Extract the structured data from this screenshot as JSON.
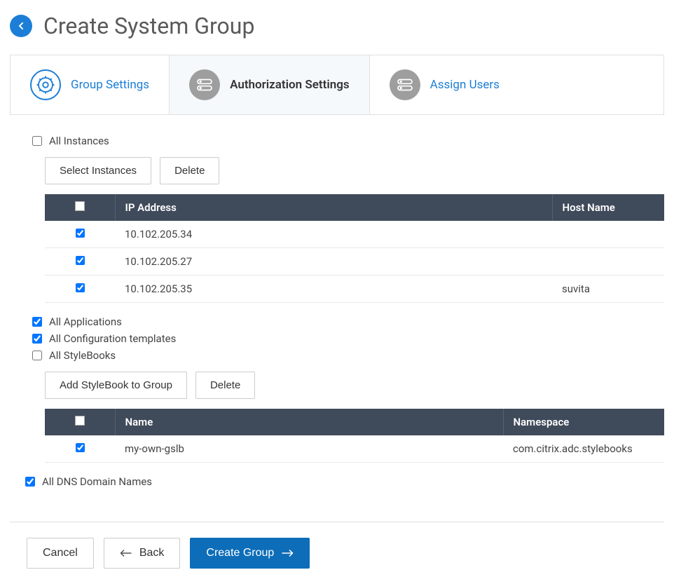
{
  "header": {
    "title": "Create System Group"
  },
  "tabs": {
    "group_settings": "Group Settings",
    "authorization_settings": "Authorization Settings",
    "assign_users": "Assign Users",
    "active_index": 1
  },
  "checkboxes": {
    "all_instances": {
      "label": "All Instances",
      "checked": false
    },
    "all_applications": {
      "label": "All Applications",
      "checked": true
    },
    "all_config_templates": {
      "label": "All Configuration templates",
      "checked": true
    },
    "all_stylebooks": {
      "label": "All StyleBooks",
      "checked": false
    },
    "all_dns": {
      "label": "All DNS Domain Names",
      "checked": true
    }
  },
  "instances_panel": {
    "select_button": "Select Instances",
    "delete_button": "Delete",
    "columns": {
      "ip": "IP Address",
      "host": "Host Name"
    },
    "rows": [
      {
        "checked": true,
        "ip": "10.102.205.34",
        "host": ""
      },
      {
        "checked": true,
        "ip": "10.102.205.27",
        "host": ""
      },
      {
        "checked": true,
        "ip": "10.102.205.35",
        "host": "suvita"
      }
    ]
  },
  "stylebooks_panel": {
    "add_button": "Add StyleBook to Group",
    "delete_button": "Delete",
    "columns": {
      "name": "Name",
      "namespace": "Namespace"
    },
    "rows": [
      {
        "checked": true,
        "name": "my-own-gslb",
        "namespace": "com.citrix.adc.stylebooks"
      }
    ]
  },
  "footer": {
    "cancel": "Cancel",
    "back": "Back",
    "create": "Create Group"
  },
  "colors": {
    "primary": "#0d6db8",
    "link": "#1c7ed6",
    "table_header_bg": "#3f4a5a",
    "tab_active_bg": "#f5f9fc",
    "icon_gray": "#9e9e9e"
  }
}
